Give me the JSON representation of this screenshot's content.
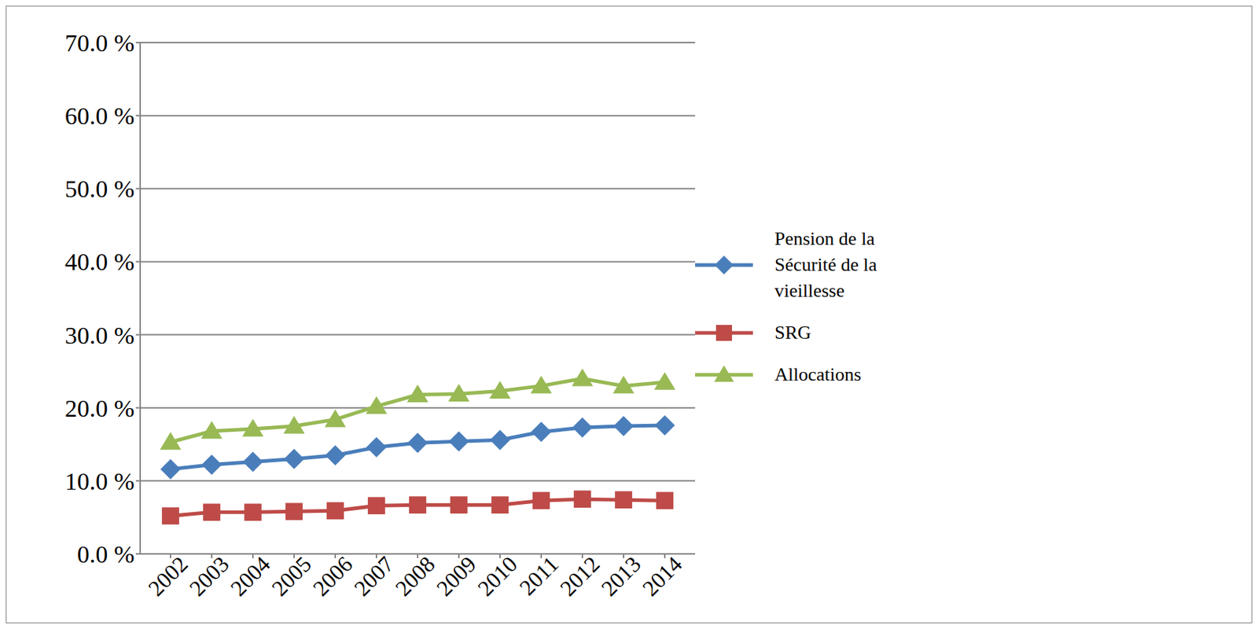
{
  "chart_data": {
    "type": "line",
    "categories": [
      "2002",
      "2003",
      "2004",
      "2005",
      "2006",
      "2007",
      "2008",
      "2009",
      "2010",
      "2011",
      "2012",
      "2013",
      "2014"
    ],
    "series": [
      {
        "name": "Pension de la Sécurité de la vieillesse",
        "color": "#4a7ebb",
        "marker": "diamond",
        "values": [
          11.6,
          12.2,
          12.6,
          13.0,
          13.5,
          14.6,
          15.2,
          15.4,
          15.6,
          16.7,
          17.3,
          17.5,
          17.6
        ]
      },
      {
        "name": "SRG",
        "color": "#be4b48",
        "marker": "square",
        "values": [
          5.2,
          5.7,
          5.7,
          5.8,
          5.9,
          6.6,
          6.7,
          6.7,
          6.7,
          7.3,
          7.5,
          7.4,
          7.3
        ]
      },
      {
        "name": "Allocations",
        "color": "#98b954",
        "marker": "triangle",
        "values": [
          15.3,
          16.8,
          17.1,
          17.5,
          18.4,
          20.2,
          21.8,
          21.9,
          22.3,
          23.0,
          24.0,
          23.0,
          23.5
        ]
      }
    ],
    "ylim": [
      0,
      70
    ],
    "yticks": [
      {
        "value": 0,
        "label": "0.0 %"
      },
      {
        "value": 10,
        "label": "10.0 %"
      },
      {
        "value": 20,
        "label": "20.0 %"
      },
      {
        "value": 30,
        "label": "30.0 %"
      },
      {
        "value": 40,
        "label": "40.0 %"
      },
      {
        "value": 50,
        "label": "50.0 %"
      },
      {
        "value": 60,
        "label": "60.0 %"
      },
      {
        "value": 70,
        "label": "70.0 %"
      }
    ],
    "grid": true,
    "legend": "right"
  }
}
